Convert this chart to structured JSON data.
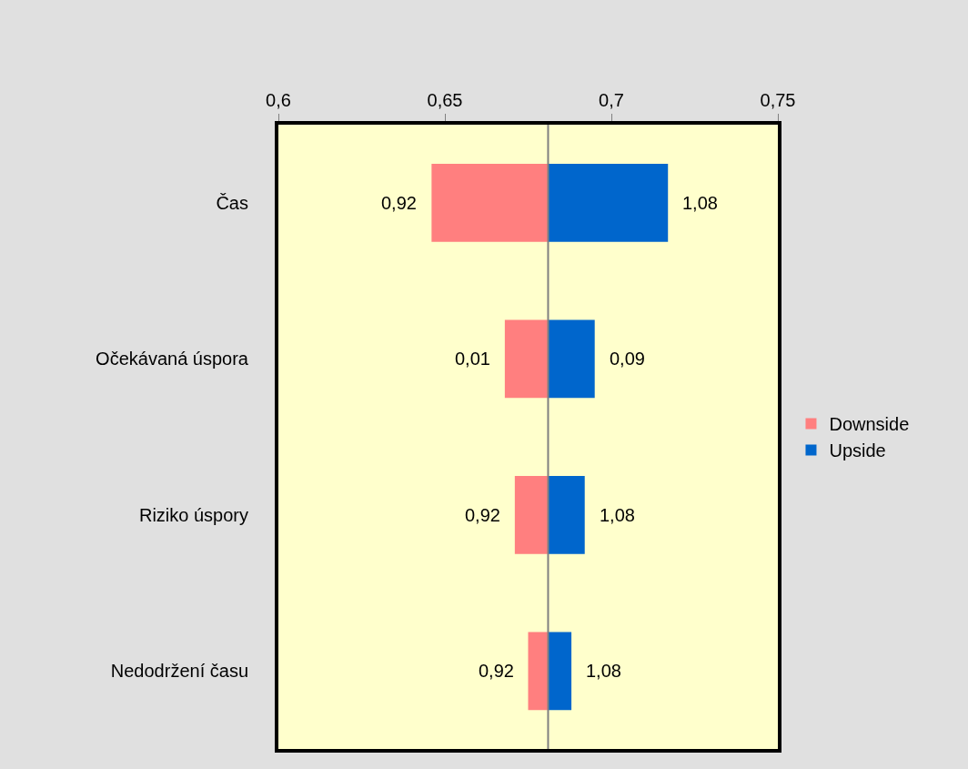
{
  "chart_data": {
    "type": "bar",
    "orientation": "horizontal",
    "categories": [
      "Čas",
      "Očekávaná úspora",
      "Riziko úspory",
      "Nedodržení času"
    ],
    "series": [
      {
        "name": "Downside",
        "color": "#ff7f7f",
        "base": [
          0.646,
          0.668,
          0.671,
          0.675
        ],
        "values": [
          0.035,
          0.013,
          0.01,
          0.006
        ]
      },
      {
        "name": "Upside",
        "color": "#0066cc",
        "base": [
          0.681,
          0.681,
          0.681,
          0.681
        ],
        "values": [
          0.036,
          0.014,
          0.011,
          0.007
        ]
      }
    ],
    "annotations": [
      {
        "text": "0,92",
        "x": 0.646,
        "y": "Čas"
      },
      {
        "text": "0,01",
        "x": 0.668,
        "y": "Očekávaná úspora"
      },
      {
        "text": "0,92",
        "x": 0.671,
        "y": "Riziko úspory"
      },
      {
        "text": "0,92",
        "x": 0.675,
        "y": "Nedodržení času"
      },
      {
        "text": "1,08",
        "x": 0.717,
        "y": "Čas"
      },
      {
        "text": "0,09",
        "x": 0.695,
        "y": "Očekávaná úspora"
      },
      {
        "text": "1,08",
        "x": 0.692,
        "y": "Riziko úspory"
      },
      {
        "text": "1,08",
        "x": 0.688,
        "y": "Nedodržení času"
      }
    ],
    "xlim": [
      0.6,
      0.75
    ],
    "xticks": [
      {
        "value": 0.6,
        "label": "0,6"
      },
      {
        "value": 0.65,
        "label": "0,65"
      },
      {
        "value": 0.7,
        "label": "0,7"
      },
      {
        "value": 0.75,
        "label": "0,75"
      }
    ],
    "ref_lines": [
      {
        "axis": "x",
        "value": 0.681,
        "color": "#808080"
      }
    ],
    "grid": false,
    "legend": "right"
  }
}
